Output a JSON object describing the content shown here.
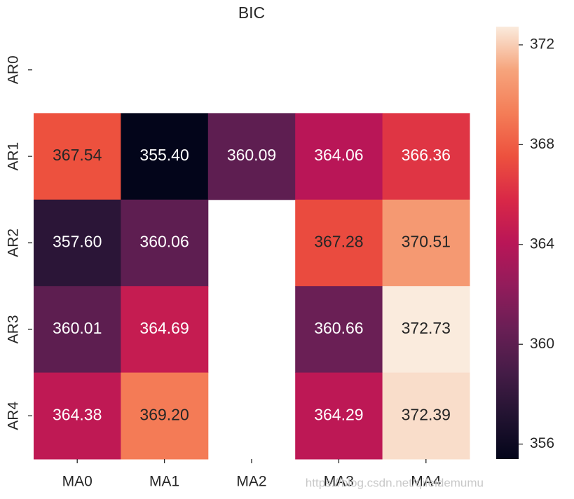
{
  "chart_data": {
    "type": "heatmap",
    "title": "BIC",
    "x": [
      "MA0",
      "MA1",
      "MA2",
      "MA3",
      "MA4"
    ],
    "y": [
      "AR0",
      "AR1",
      "AR2",
      "AR3",
      "AR4"
    ],
    "values": [
      [
        null,
        null,
        null,
        null,
        null
      ],
      [
        367.54,
        355.4,
        360.09,
        364.06,
        366.36
      ],
      [
        357.6,
        360.06,
        null,
        367.28,
        370.51
      ],
      [
        360.01,
        364.69,
        null,
        360.66,
        372.73
      ],
      [
        364.38,
        369.2,
        null,
        364.29,
        372.39
      ]
    ],
    "value_labels": [
      [
        null,
        null,
        null,
        null,
        null
      ],
      [
        "367.54",
        "355.40",
        "360.09",
        "364.06",
        "366.36"
      ],
      [
        "357.60",
        "360.06",
        null,
        "367.28",
        "370.51"
      ],
      [
        "360.01",
        "364.69",
        null,
        "360.66",
        "372.73"
      ],
      [
        "364.38",
        "369.20",
        null,
        "364.29",
        "372.39"
      ]
    ],
    "clim": [
      355.4,
      372.73
    ],
    "cticks": [
      356,
      360,
      364,
      368,
      372
    ],
    "colormap": [
      "#03051a",
      "#221331",
      "#451c47",
      "#691f55",
      "#921c5b",
      "#b91657",
      "#d92847",
      "#ed513e",
      "#f47d57",
      "#f6a47c",
      "#faebdd"
    ],
    "watermark": "https://blog.csdn.net/qifeidemumu"
  }
}
